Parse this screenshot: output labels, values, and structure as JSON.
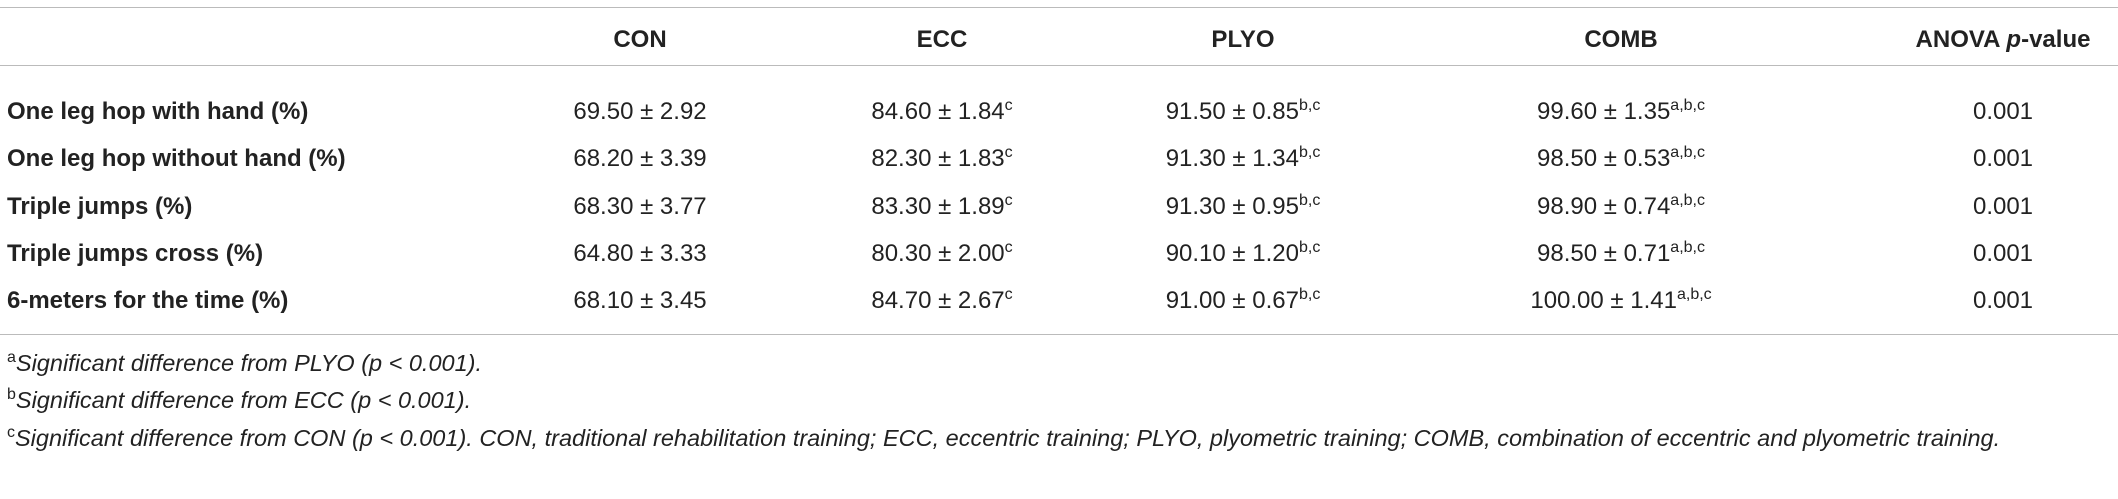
{
  "table": {
    "header": [
      "CON",
      "ECC",
      "PLYO",
      "COMB"
    ],
    "anova_header": {
      "lead": "ANOVA",
      "italic": "p",
      "tail": "-value"
    },
    "rows": [
      {
        "label": "One leg hop with hand (%)",
        "cells": [
          {
            "value": "69.50 ± 2.92"
          },
          {
            "value": "84.60 ± 1.84",
            "sup": "c"
          },
          {
            "value": "91.50 ± 0.85",
            "sup": "b,c"
          },
          {
            "value": "99.60 ± 1.35",
            "sup": "a,b,c"
          }
        ],
        "anova": "0.001"
      },
      {
        "label": "One leg hop without hand (%)",
        "cells": [
          {
            "value": "68.20 ± 3.39"
          },
          {
            "value": "82.30 ± 1.83",
            "sup": "c"
          },
          {
            "value": "91.30 ± 1.34",
            "sup": "b,c"
          },
          {
            "value": "98.50 ± 0.53",
            "sup": "a,b,c"
          }
        ],
        "anova": "0.001"
      },
      {
        "label": "Triple jumps (%)",
        "cells": [
          {
            "value": "68.30 ± 3.77"
          },
          {
            "value": "83.30 ± 1.89",
            "sup": "c"
          },
          {
            "value": "91.30 ± 0.95",
            "sup": "b,c"
          },
          {
            "value": "98.90 ± 0.74",
            "sup": "a,b,c"
          }
        ],
        "anova": "0.001"
      },
      {
        "label": "Triple jumps cross (%)",
        "cells": [
          {
            "value": "64.80 ± 3.33"
          },
          {
            "value": "80.30 ± 2.00",
            "sup": "c"
          },
          {
            "value": "90.10 ± 1.20",
            "sup": "b,c"
          },
          {
            "value": "98.50 ± 0.71",
            "sup": "a,b,c"
          }
        ],
        "anova": "0.001"
      },
      {
        "label": "6-meters for the time (%)",
        "cells": [
          {
            "value": "68.10 ± 3.45"
          },
          {
            "value": "84.70 ± 2.67",
            "sup": "c"
          },
          {
            "value": "91.00 ± 0.67",
            "sup": "b,c"
          },
          {
            "value": "100.00 ± 1.41",
            "sup": "a,b,c"
          }
        ],
        "anova": "0.001"
      }
    ]
  },
  "footnotes": [
    {
      "mark": "a",
      "text": "Significant difference from PLYO (p < 0.001)."
    },
    {
      "mark": "b",
      "text": "Significant difference from ECC (p < 0.001)."
    },
    {
      "mark": "c",
      "text": "Significant difference from CON (p < 0.001). CON, traditional rehabilitation training; ECC, eccentric training; PLYO, plyometric training; COMB, combination of eccentric and plyometric training."
    }
  ]
}
